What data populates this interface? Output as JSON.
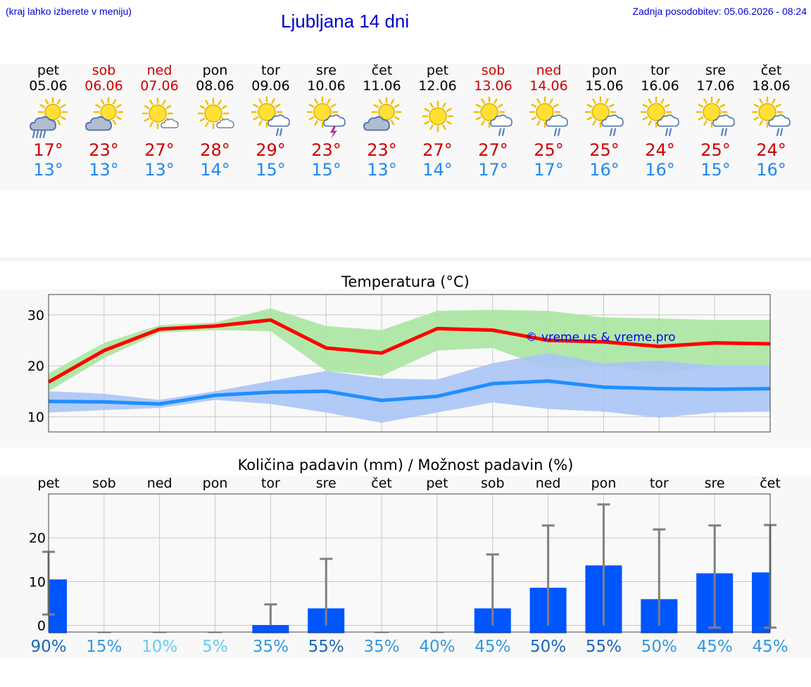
{
  "header": {
    "left_note": "(kraj lahko izberete v meniju)",
    "title": "Ljubljana 14 dni",
    "updated": "Zadnja posodobitev: 05.06.2026 - 08:24"
  },
  "colors": {
    "weekday": "#000000",
    "weekend": "#cc0000",
    "tmax": "#cc0000",
    "tmin": "#2288ee",
    "max_line": "#ff0000",
    "max_band": "#a8e6a1",
    "min_line": "#1f8fff",
    "min_band": "#aac4f5",
    "bar": "#0055ff",
    "errbar": "#808080"
  },
  "days": [
    {
      "name": "pet",
      "date": "05.06",
      "weekend": false,
      "icon": "sun-cloud-heavy-rain-icon",
      "tmax": "17°",
      "tmin": "13°"
    },
    {
      "name": "sob",
      "date": "06.06",
      "weekend": true,
      "icon": "sun-cloud-icon",
      "tmax": "23°",
      "tmin": "13°"
    },
    {
      "name": "ned",
      "date": "07.06",
      "weekend": true,
      "icon": "sun-small-cloud-icon",
      "tmax": "27°",
      "tmin": "13°"
    },
    {
      "name": "pon",
      "date": "08.06",
      "weekend": false,
      "icon": "sun-small-cloud-icon",
      "tmax": "28°",
      "tmin": "14°"
    },
    {
      "name": "tor",
      "date": "09.06",
      "weekend": false,
      "icon": "sun-cloud-rain-icon",
      "tmax": "29°",
      "tmin": "15°"
    },
    {
      "name": "sre",
      "date": "10.06",
      "weekend": false,
      "icon": "sun-thunder-icon",
      "tmax": "23°",
      "tmin": "15°"
    },
    {
      "name": "čet",
      "date": "11.06",
      "weekend": false,
      "icon": "sun-cloud-icon",
      "tmax": "23°",
      "tmin": "13°"
    },
    {
      "name": "pet",
      "date": "12.06",
      "weekend": false,
      "icon": "sun-icon",
      "tmax": "27°",
      "tmin": "14°"
    },
    {
      "name": "sob",
      "date": "13.06",
      "weekend": true,
      "icon": "sun-cloud-rain-icon",
      "tmax": "27°",
      "tmin": "17°"
    },
    {
      "name": "ned",
      "date": "14.06",
      "weekend": true,
      "icon": "sun-cloud-rain-icon",
      "tmax": "25°",
      "tmin": "17°"
    },
    {
      "name": "pon",
      "date": "15.06",
      "weekend": false,
      "icon": "sun-cloud-rain-icon",
      "tmax": "25°",
      "tmin": "16°"
    },
    {
      "name": "tor",
      "date": "16.06",
      "weekend": false,
      "icon": "sun-cloud-rain-icon",
      "tmax": "24°",
      "tmin": "16°"
    },
    {
      "name": "sre",
      "date": "17.06",
      "weekend": false,
      "icon": "sun-cloud-rain-icon",
      "tmax": "25°",
      "tmin": "15°"
    },
    {
      "name": "čet",
      "date": "18.06",
      "weekend": false,
      "icon": "sun-cloud-rain-icon",
      "tmax": "24°",
      "tmin": "16°"
    }
  ],
  "chart_data": [
    {
      "type": "line",
      "title": "Temperatura (°C)",
      "watermark": "© vreme.us & vreme.pro",
      "categories": [
        "pet",
        "sob",
        "ned",
        "pon",
        "tor",
        "sre",
        "čet",
        "pet",
        "sob",
        "ned",
        "pon",
        "tor",
        "sre",
        "čet"
      ],
      "ylim": [
        7,
        34
      ],
      "yticks": [
        10,
        20,
        30
      ],
      "grid": true,
      "series": [
        {
          "values": [
            16.8,
            23.0,
            27.2,
            27.8,
            29.0,
            23.5,
            22.5,
            27.3,
            27.0,
            25.0,
            24.7,
            23.8,
            24.5,
            24.3
          ],
          "band_low": [
            15.0,
            21.5,
            26.5,
            27.0,
            26.8,
            19.0,
            18.0,
            23.0,
            23.5,
            19.5,
            20.0,
            18.5,
            20.0,
            20.0
          ],
          "band_high": [
            18.5,
            24.5,
            28.0,
            28.5,
            31.3,
            27.8,
            27.0,
            30.8,
            31.0,
            30.8,
            29.5,
            29.3,
            29.0,
            29.0
          ]
        },
        {
          "values": [
            13.0,
            12.9,
            12.5,
            14.2,
            14.8,
            15.0,
            13.2,
            14.0,
            16.5,
            17.0,
            15.8,
            15.5,
            15.4,
            15.5
          ],
          "band_low": [
            10.8,
            11.3,
            11.7,
            13.3,
            12.5,
            10.8,
            8.8,
            10.8,
            12.8,
            11.5,
            11.0,
            9.8,
            10.8,
            11.0
          ],
          "band_high": [
            15.0,
            14.5,
            13.3,
            15.0,
            17.0,
            19.0,
            17.5,
            17.3,
            20.5,
            22.5,
            20.5,
            21.0,
            20.0,
            20.0
          ]
        }
      ]
    },
    {
      "type": "bar",
      "title": "Količina padavin (mm) / Možnost padavin (%)",
      "categories": [
        "pet",
        "sob",
        "ned",
        "pon",
        "tor",
        "sre",
        "čet",
        "pet",
        "sob",
        "ned",
        "pon",
        "tor",
        "sre",
        "čet"
      ],
      "ylim": [
        -1.5,
        30
      ],
      "yticks": [
        0,
        10,
        20
      ],
      "grid": true,
      "values": [
        10.5,
        0,
        0,
        0,
        0.1,
        3.9,
        0,
        0,
        3.9,
        8.6,
        13.7,
        6.0,
        11.9,
        12.1
      ],
      "err_low": [
        2.5,
        0,
        0,
        0,
        0,
        0,
        0,
        0,
        0,
        0,
        0,
        0,
        -0.5,
        -0.5
      ],
      "err_high": [
        16.8,
        0,
        0,
        0,
        4.8,
        15.2,
        0,
        0,
        16.2,
        22.8,
        27.6,
        21.9,
        22.8,
        22.9
      ],
      "probabilities": [
        "90%",
        "15%",
        "10%",
        "5%",
        "35%",
        "55%",
        "35%",
        "40%",
        "45%",
        "50%",
        "55%",
        "50%",
        "45%",
        "45%"
      ],
      "probability_colors": [
        "#1a66b8",
        "#3399dd",
        "#66ccee",
        "#66ccee",
        "#3399dd",
        "#1a66b8",
        "#3399dd",
        "#3399dd",
        "#3399dd",
        "#1a66b8",
        "#1a66b8",
        "#3399dd",
        "#3399dd",
        "#3399dd"
      ]
    }
  ]
}
